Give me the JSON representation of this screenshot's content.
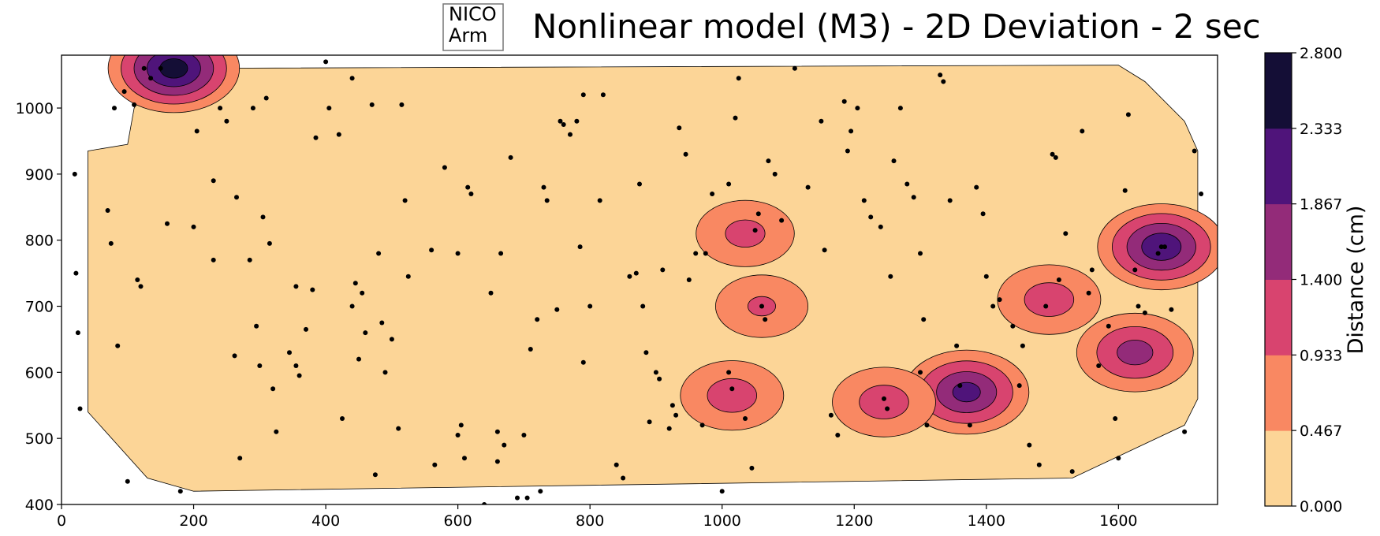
{
  "chart_data": {
    "type": "contour",
    "title": "Nonlinear model (M3) - 2D Deviation - 2 sec",
    "annotation": [
      "NICO",
      "Arm"
    ],
    "xlim": [
      0,
      1750
    ],
    "ylim": [
      400,
      1080
    ],
    "x_ticks": [
      0,
      200,
      400,
      600,
      800,
      1000,
      1200,
      1400,
      1600
    ],
    "y_ticks": [
      400,
      500,
      600,
      700,
      800,
      900,
      1000
    ],
    "grid": false,
    "colorbar": {
      "label": "Distance (cm)",
      "levels": [
        0.0,
        0.467,
        0.933,
        1.4,
        1.867,
        2.333,
        2.8
      ],
      "tick_labels": [
        "0.000",
        "0.467",
        "0.933",
        "1.400",
        "1.867",
        "2.333",
        "2.800"
      ],
      "colors": [
        "#fcd597",
        "#f98862",
        "#d8446f",
        "#932b79",
        "#4f147a",
        "#140e36"
      ]
    },
    "hotspots": [
      {
        "x": 1665,
        "y": 790,
        "peak": 2.2
      },
      {
        "x": 1370,
        "y": 570,
        "peak": 2.0
      },
      {
        "x": 170,
        "y": 1060,
        "peak": 2.5
      },
      {
        "x": 1625,
        "y": 630,
        "peak": 1.6
      },
      {
        "x": 1015,
        "y": 565,
        "peak": 1.2
      },
      {
        "x": 1245,
        "y": 555,
        "peak": 1.2
      },
      {
        "x": 1495,
        "y": 710,
        "peak": 1.2
      },
      {
        "x": 1035,
        "y": 810,
        "peak": 1.1
      },
      {
        "x": 1060,
        "y": 700,
        "peak": 1.0
      }
    ],
    "sample_points": [
      [
        20,
        900
      ],
      [
        22,
        750
      ],
      [
        25,
        660
      ],
      [
        28,
        545
      ],
      [
        70,
        845
      ],
      [
        75,
        795
      ],
      [
        80,
        1000
      ],
      [
        85,
        640
      ],
      [
        95,
        1025
      ],
      [
        100,
        435
      ],
      [
        110,
        1005
      ],
      [
        115,
        740
      ],
      [
        120,
        730
      ],
      [
        125,
        1060
      ],
      [
        135,
        1045
      ],
      [
        150,
        1060
      ],
      [
        160,
        825
      ],
      [
        180,
        420
      ],
      [
        200,
        820
      ],
      [
        205,
        965
      ],
      [
        230,
        770
      ],
      [
        230,
        890
      ],
      [
        240,
        1000
      ],
      [
        250,
        980
      ],
      [
        262,
        625
      ],
      [
        265,
        865
      ],
      [
        270,
        470
      ],
      [
        285,
        770
      ],
      [
        290,
        1000
      ],
      [
        295,
        670
      ],
      [
        300,
        610
      ],
      [
        305,
        835
      ],
      [
        310,
        1015
      ],
      [
        315,
        795
      ],
      [
        320,
        575
      ],
      [
        325,
        510
      ],
      [
        345,
        630
      ],
      [
        355,
        610
      ],
      [
        360,
        595
      ],
      [
        370,
        665
      ],
      [
        380,
        725
      ],
      [
        385,
        955
      ],
      [
        400,
        1070
      ],
      [
        405,
        1000
      ],
      [
        420,
        960
      ],
      [
        425,
        530
      ],
      [
        440,
        1045
      ],
      [
        445,
        735
      ],
      [
        450,
        620
      ],
      [
        455,
        720
      ],
      [
        460,
        660
      ],
      [
        470,
        1005
      ],
      [
        475,
        445
      ],
      [
        480,
        780
      ],
      [
        485,
        675
      ],
      [
        490,
        600
      ],
      [
        500,
        650
      ],
      [
        510,
        515
      ],
      [
        515,
        1005
      ],
      [
        520,
        860
      ],
      [
        525,
        745
      ],
      [
        560,
        785
      ],
      [
        565,
        460
      ],
      [
        580,
        910
      ],
      [
        600,
        505
      ],
      [
        605,
        520
      ],
      [
        610,
        470
      ],
      [
        615,
        880
      ],
      [
        620,
        870
      ],
      [
        640,
        400
      ],
      [
        650,
        720
      ],
      [
        660,
        510
      ],
      [
        665,
        780
      ],
      [
        670,
        490
      ],
      [
        680,
        925
      ],
      [
        690,
        410
      ],
      [
        700,
        505
      ],
      [
        705,
        410
      ],
      [
        710,
        635
      ],
      [
        720,
        680
      ],
      [
        725,
        420
      ],
      [
        730,
        880
      ],
      [
        735,
        860
      ],
      [
        750,
        695
      ],
      [
        755,
        980
      ],
      [
        760,
        975
      ],
      [
        770,
        960
      ],
      [
        780,
        980
      ],
      [
        785,
        790
      ],
      [
        790,
        615
      ],
      [
        800,
        700
      ],
      [
        815,
        860
      ],
      [
        820,
        1020
      ],
      [
        840,
        460
      ],
      [
        850,
        440
      ],
      [
        860,
        745
      ],
      [
        870,
        750
      ],
      [
        875,
        885
      ],
      [
        880,
        700
      ],
      [
        885,
        630
      ],
      [
        890,
        525
      ],
      [
        900,
        600
      ],
      [
        905,
        590
      ],
      [
        910,
        755
      ],
      [
        920,
        515
      ],
      [
        925,
        550
      ],
      [
        930,
        535
      ],
      [
        935,
        970
      ],
      [
        945,
        930
      ],
      [
        950,
        740
      ],
      [
        960,
        780
      ],
      [
        970,
        520
      ],
      [
        975,
        780
      ],
      [
        985,
        870
      ],
      [
        1000,
        420
      ],
      [
        1010,
        600
      ],
      [
        1015,
        575
      ],
      [
        1020,
        985
      ],
      [
        1025,
        1045
      ],
      [
        1035,
        530
      ],
      [
        1045,
        455
      ],
      [
        1050,
        815
      ],
      [
        1055,
        840
      ],
      [
        1060,
        700
      ],
      [
        1065,
        680
      ],
      [
        1070,
        920
      ],
      [
        1080,
        900
      ],
      [
        1090,
        830
      ],
      [
        1110,
        1060
      ],
      [
        1130,
        880
      ],
      [
        1150,
        980
      ],
      [
        1155,
        785
      ],
      [
        1165,
        535
      ],
      [
        1175,
        505
      ],
      [
        1185,
        1010
      ],
      [
        1190,
        935
      ],
      [
        1195,
        965
      ],
      [
        1205,
        1000
      ],
      [
        1215,
        860
      ],
      [
        1225,
        835
      ],
      [
        1240,
        820
      ],
      [
        1245,
        560
      ],
      [
        1250,
        545
      ],
      [
        1255,
        745
      ],
      [
        1260,
        920
      ],
      [
        1270,
        1000
      ],
      [
        1280,
        885
      ],
      [
        1290,
        865
      ],
      [
        1300,
        780
      ],
      [
        1305,
        680
      ],
      [
        1310,
        520
      ],
      [
        1330,
        1050
      ],
      [
        1335,
        1040
      ],
      [
        1345,
        860
      ],
      [
        1355,
        640
      ],
      [
        1360,
        580
      ],
      [
        1375,
        520
      ],
      [
        1385,
        880
      ],
      [
        1395,
        840
      ],
      [
        1400,
        745
      ],
      [
        1410,
        700
      ],
      [
        1420,
        710
      ],
      [
        1440,
        670
      ],
      [
        1450,
        580
      ],
      [
        1465,
        490
      ],
      [
        1480,
        460
      ],
      [
        1490,
        700
      ],
      [
        1500,
        930
      ],
      [
        1505,
        925
      ],
      [
        1510,
        740
      ],
      [
        1520,
        810
      ],
      [
        1530,
        450
      ],
      [
        1545,
        965
      ],
      [
        1555,
        720
      ],
      [
        1560,
        755
      ],
      [
        1570,
        610
      ],
      [
        1585,
        670
      ],
      [
        1595,
        530
      ],
      [
        1600,
        470
      ],
      [
        1610,
        875
      ],
      [
        1615,
        990
      ],
      [
        1625,
        755
      ],
      [
        1630,
        700
      ],
      [
        1640,
        690
      ],
      [
        1660,
        780
      ],
      [
        1665,
        790
      ],
      [
        1670,
        790
      ],
      [
        1680,
        695
      ],
      [
        1700,
        510
      ],
      [
        1715,
        935
      ],
      [
        1725,
        870
      ],
      [
        355,
        730
      ],
      [
        440,
        700
      ],
      [
        600,
        780
      ],
      [
        660,
        465
      ],
      [
        1010,
        885
      ],
      [
        1300,
        600
      ],
      [
        1455,
        640
      ],
      [
        790,
        1020
      ]
    ]
  }
}
